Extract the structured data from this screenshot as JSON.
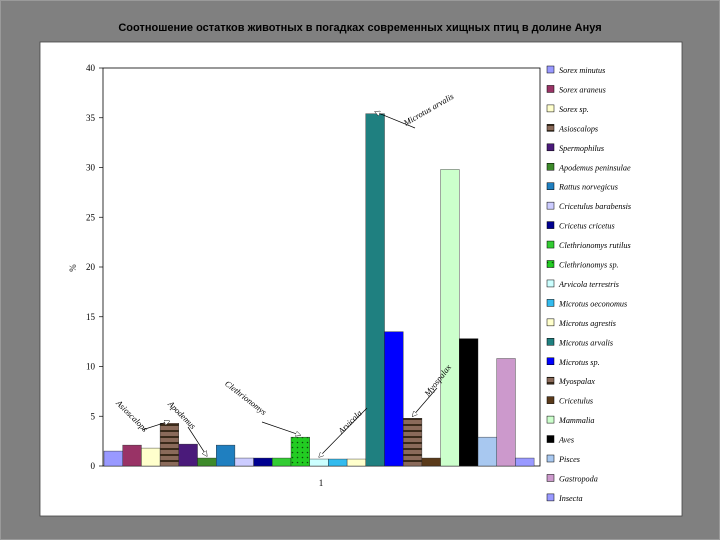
{
  "chart_data": {
    "type": "bar",
    "title": "Соотношение остатков животных в погадках современных хищных птиц в долине Ануя",
    "ylabel": "%",
    "xlabel": "",
    "x_tick": "1",
    "ylim": [
      0,
      40
    ],
    "yticks": [
      0,
      5,
      10,
      15,
      20,
      25,
      30,
      35,
      40
    ],
    "grid": false,
    "legend_position": "right",
    "series": [
      {
        "name": "Sorex minutus",
        "value": 1.5,
        "color": "#9999ff",
        "pattern": "none"
      },
      {
        "name": "Sorex araneus",
        "value": 2.1,
        "color": "#993366",
        "pattern": "none"
      },
      {
        "name": "Sorex sp.",
        "value": 1.8,
        "color": "#ffffcc",
        "pattern": "none"
      },
      {
        "name": "Asioscalops",
        "value": 4.3,
        "color": "#8a6a5a",
        "pattern": "hstripe"
      },
      {
        "name": "Spermophilus",
        "value": 2.2,
        "color": "#4a1a7a",
        "pattern": "none"
      },
      {
        "name": "Apodemus peninsulae",
        "value": 0.8,
        "color": "#3d8a2a",
        "pattern": "none"
      },
      {
        "name": "Rattus norvegicus",
        "value": 2.1,
        "color": "#1f7fc0",
        "pattern": "none"
      },
      {
        "name": "Cricetulus barabensis",
        "value": 0.8,
        "color": "#ccccff",
        "pattern": "none"
      },
      {
        "name": "Cricetus cricetus",
        "value": 0.8,
        "color": "#000090",
        "pattern": "none"
      },
      {
        "name": "Clethrionomys rutilus",
        "value": 0.8,
        "color": "#33cc33",
        "pattern": "none"
      },
      {
        "name": "Clethrionomys sp.",
        "value": 2.9,
        "color": "#22cc22",
        "pattern": "dots"
      },
      {
        "name": "Arvicola terrestris",
        "value": 0.7,
        "color": "#ccffff",
        "pattern": "none"
      },
      {
        "name": "Microtus oeconomus",
        "value": 0.7,
        "color": "#33bbee",
        "pattern": "none"
      },
      {
        "name": "Microtus agrestis",
        "value": 0.7,
        "color": "#ffffcc",
        "pattern": "none"
      },
      {
        "name": "Microtus arvalis",
        "value": 35.4,
        "color": "#1f8080",
        "pattern": "none"
      },
      {
        "name": "Microtus sp.",
        "value": 13.5,
        "color": "#0000ff",
        "pattern": "none"
      },
      {
        "name": "Myospalax",
        "value": 4.8,
        "color": "#8a6a5a",
        "pattern": "hstripe"
      },
      {
        "name": "Cricetulus",
        "value": 0.8,
        "color": "#5a3a1a",
        "pattern": "none"
      },
      {
        "name": "Mammalia",
        "value": 29.8,
        "color": "#ccffcc",
        "pattern": "none"
      },
      {
        "name": "Aves",
        "value": 12.8,
        "color": "#000000",
        "pattern": "none"
      },
      {
        "name": "Pisces",
        "value": 2.9,
        "color": "#a8c8f0",
        "pattern": "none"
      },
      {
        "name": "Gastropoda",
        "value": 10.8,
        "color": "#cc99cc",
        "pattern": "none"
      },
      {
        "name": "Insecta",
        "value": 0.8,
        "color": "#9999ff",
        "pattern": "none"
      }
    ],
    "annotations": [
      {
        "text": "Microtus arvalis",
        "target_index": 14
      },
      {
        "text": "Myospalax",
        "target_index": 16
      },
      {
        "text": "Arvicola",
        "target_index": 11
      },
      {
        "text": "Clethrionomys",
        "target_index": 10
      },
      {
        "text": "Apodemus",
        "target_index": 5
      },
      {
        "text": "Asioscalops",
        "target_index": 3
      }
    ]
  }
}
